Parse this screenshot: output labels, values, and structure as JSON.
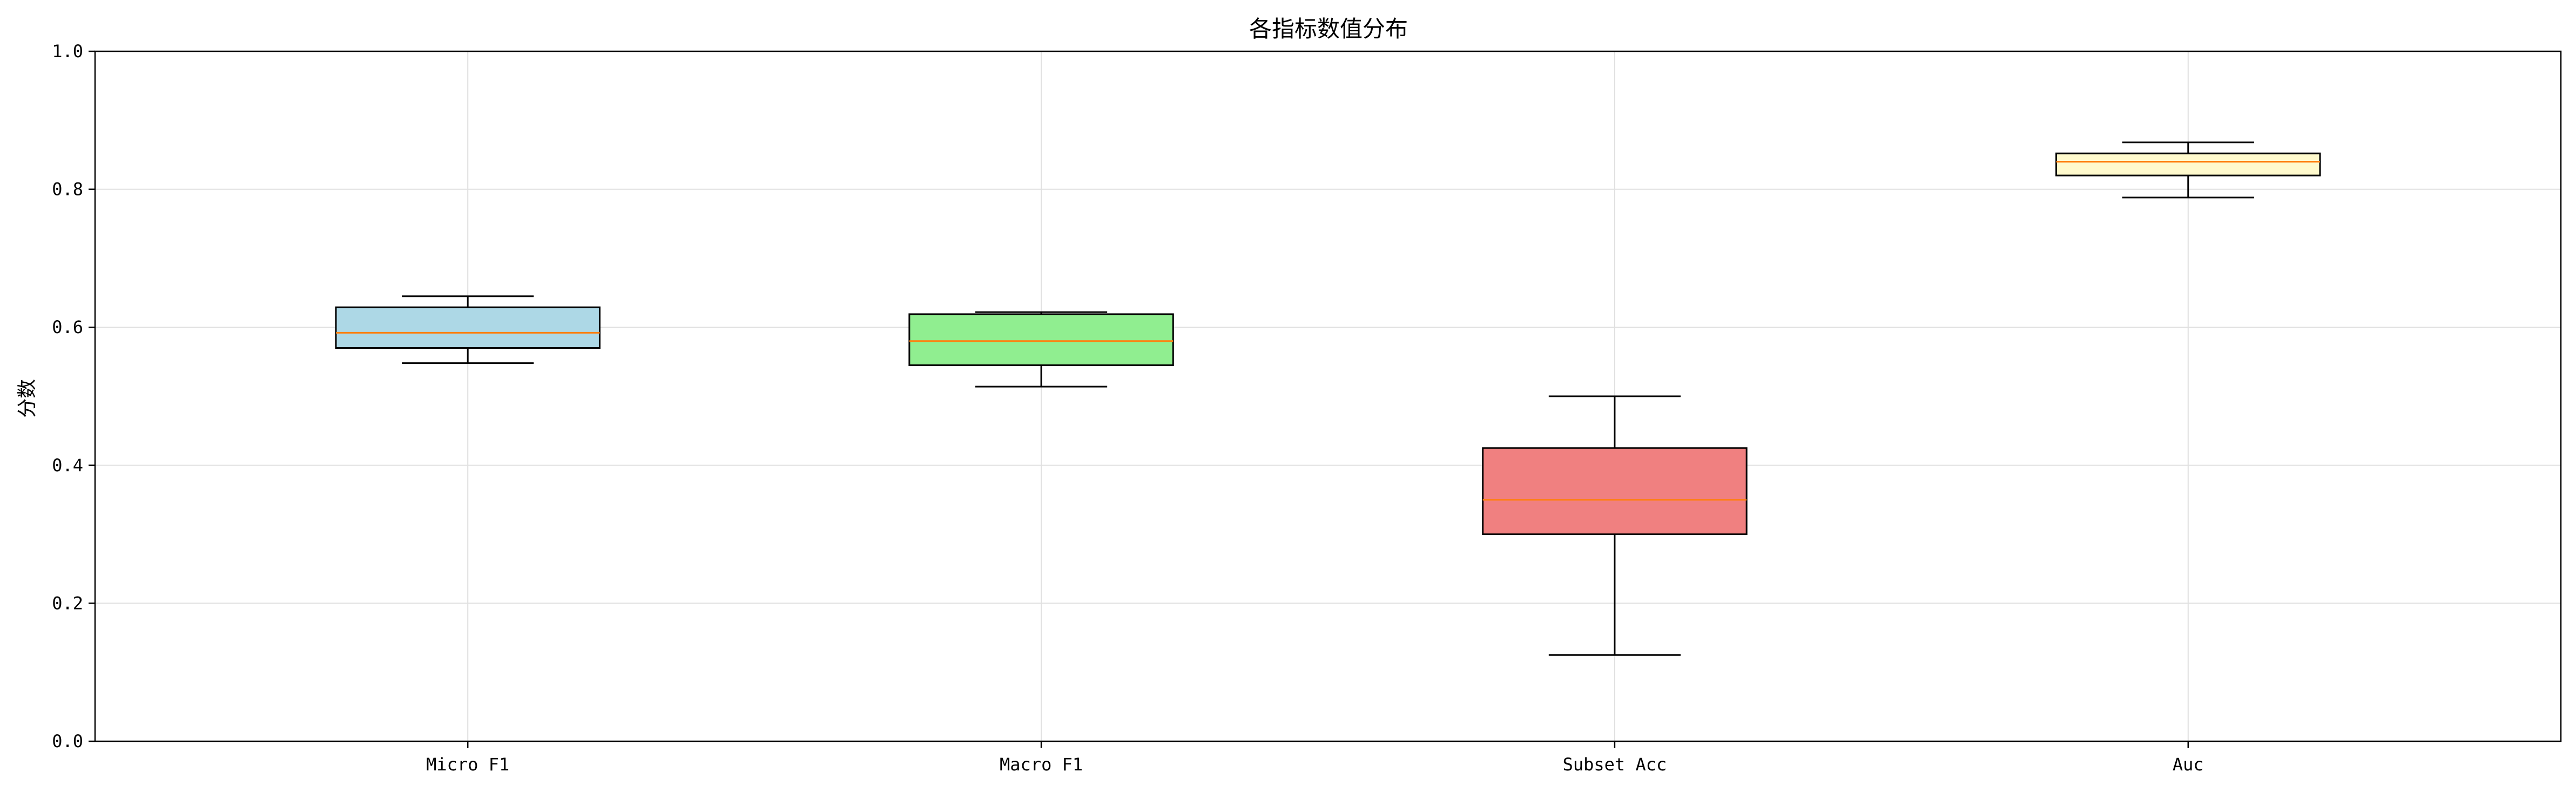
{
  "chart_data": {
    "type": "box",
    "title": "各指标数值分布",
    "xlabel": "",
    "ylabel": "分数",
    "ylim": [
      0.0,
      1.0
    ],
    "yticks": [
      {
        "value": 0.0,
        "label": "0.0"
      },
      {
        "value": 0.2,
        "label": "0.2"
      },
      {
        "value": 0.4,
        "label": "0.4"
      },
      {
        "value": 0.6,
        "label": "0.6"
      },
      {
        "value": 0.8,
        "label": "0.8"
      },
      {
        "value": 1.0,
        "label": "1.0"
      }
    ],
    "grid": true,
    "categories": [
      "Micro F1",
      "Macro F1",
      "Subset Acc",
      "Auc"
    ],
    "boxes": [
      {
        "name": "Micro F1",
        "whisker_low": 0.548,
        "q1": 0.57,
        "median": 0.592,
        "q3": 0.629,
        "whisker_high": 0.645,
        "fill": "#add8e6"
      },
      {
        "name": "Macro F1",
        "whisker_low": 0.514,
        "q1": 0.545,
        "median": 0.58,
        "q3": 0.619,
        "whisker_high": 0.622,
        "fill": "#90ee90"
      },
      {
        "name": "Subset Acc",
        "whisker_low": 0.125,
        "q1": 0.3,
        "median": 0.35,
        "q3": 0.425,
        "whisker_high": 0.5,
        "fill": "#f08080"
      },
      {
        "name": "Auc",
        "whisker_low": 0.788,
        "q1": 0.82,
        "median": 0.84,
        "q3": 0.852,
        "whisker_high": 0.868,
        "fill": "#fffacd"
      }
    ],
    "colors": {
      "median": "#ff7f0e",
      "box_edge": "#000000",
      "grid": "#e0e0e0"
    }
  }
}
